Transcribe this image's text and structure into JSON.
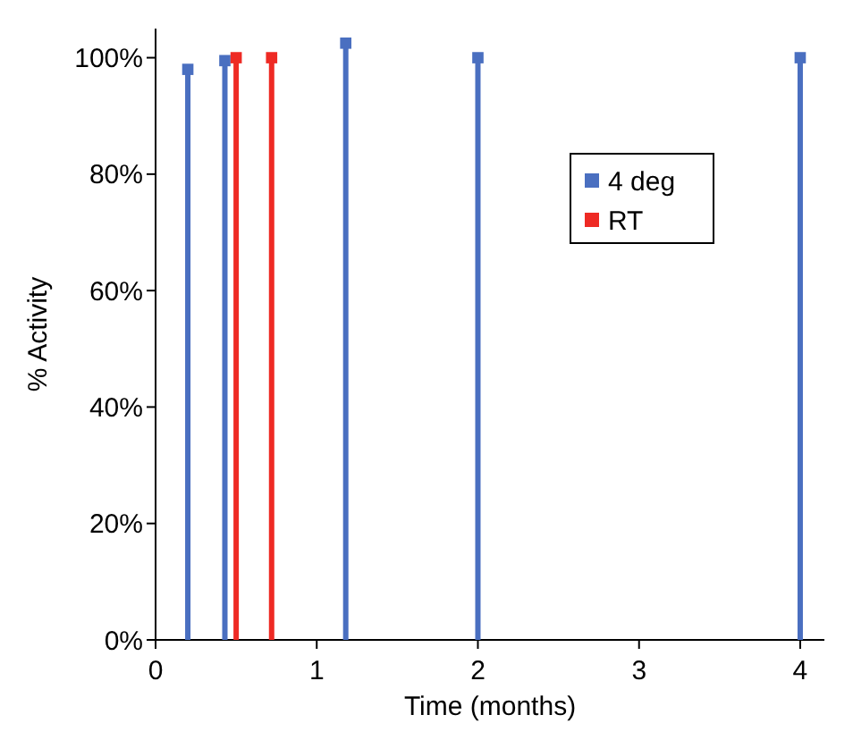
{
  "chart_data": {
    "type": "lollipop",
    "xlabel": "Time (months)",
    "ylabel": "% Activity",
    "xlim": [
      0,
      4.15
    ],
    "xticks": [
      0,
      1,
      2,
      3,
      4
    ],
    "ylim": [
      0,
      105
    ],
    "yticks": [
      {
        "value": 0,
        "label": "0%"
      },
      {
        "value": 20,
        "label": "20%"
      },
      {
        "value": 40,
        "label": "40%"
      },
      {
        "value": 60,
        "label": "60%"
      },
      {
        "value": 80,
        "label": "80%"
      },
      {
        "value": 100,
        "label": "100%"
      }
    ],
    "marker": "square",
    "legend": "right",
    "series": [
      {
        "name": "4 deg",
        "color": "#4a6fc0",
        "x": [
          0.2,
          0.43,
          1.18,
          2,
          4
        ],
        "values": [
          98,
          99.5,
          102.5,
          100,
          100
        ]
      },
      {
        "name": "RT",
        "color": "#ee2a24",
        "x": [
          0.5,
          0.72
        ],
        "values": [
          100,
          100
        ]
      }
    ]
  }
}
